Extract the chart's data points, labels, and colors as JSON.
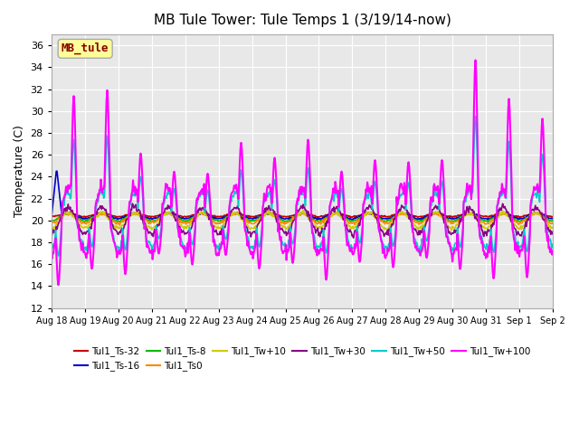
{
  "title": "MB Tule Tower: Tule Temps 1 (3/19/14-now)",
  "ylabel": "Temperature (C)",
  "ylim": [
    12,
    37
  ],
  "yticks": [
    12,
    14,
    16,
    18,
    20,
    22,
    24,
    26,
    28,
    30,
    32,
    34,
    36
  ],
  "bg_color": "#e8e8e8",
  "fig_color": "#ffffff",
  "series": [
    {
      "label": "Tul1_Ts-32",
      "color": "#cc0000",
      "lw": 1.2
    },
    {
      "label": "Tul1_Ts-16",
      "color": "#0000cc",
      "lw": 1.2
    },
    {
      "label": "Tul1_Ts-8",
      "color": "#00bb00",
      "lw": 1.2
    },
    {
      "label": "Tul1_Ts0",
      "color": "#ff8800",
      "lw": 1.2
    },
    {
      "label": "Tul1_Tw+10",
      "color": "#cccc00",
      "lw": 1.2
    },
    {
      "label": "Tul1_Tw+30",
      "color": "#880088",
      "lw": 1.2
    },
    {
      "label": "Tul1_Tw+50",
      "color": "#00cccc",
      "lw": 1.2
    },
    {
      "label": "Tul1_Tw+100",
      "color": "#ff00ff",
      "lw": 1.5
    }
  ],
  "x_tick_labels": [
    "Aug 18",
    "Aug 19",
    "Aug 20",
    "Aug 21",
    "Aug 22",
    "Aug 23",
    "Aug 24",
    "Aug 25",
    "Aug 26",
    "Aug 27",
    "Aug 28",
    "Aug 29",
    "Aug 30",
    "Aug 31",
    "Sep 1",
    "Sep 2"
  ],
  "n_days": 15,
  "station_box_text": "MB_tule",
  "station_box_color": "#ffff99",
  "station_text_color": "#880000"
}
